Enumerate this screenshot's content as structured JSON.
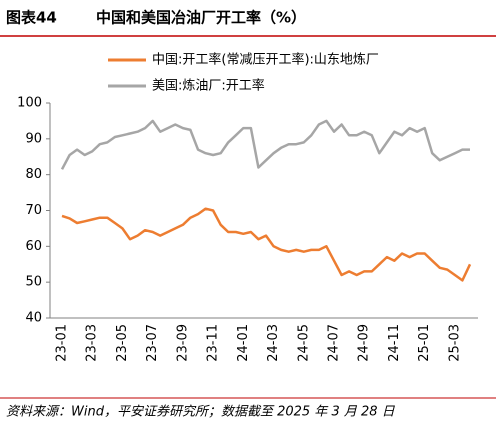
{
  "chart_data": {
    "type": "line",
    "figure_label": "图表44",
    "title": "中国和美国冶油厂开工率（%）",
    "source": "资料来源：Wind，平安证券研究所；数据截至 2025 年 3 月 28 日",
    "categories": [
      "23-01",
      null,
      null,
      null,
      "23-03",
      null,
      null,
      null,
      "23-05",
      null,
      null,
      null,
      "23-07",
      null,
      null,
      null,
      "23-09",
      null,
      null,
      null,
      "23-11",
      null,
      null,
      null,
      "24-01",
      null,
      null,
      null,
      "24-03",
      null,
      null,
      null,
      "24-05",
      null,
      null,
      null,
      "24-07",
      null,
      null,
      null,
      "24-09",
      null,
      null,
      null,
      "24-11",
      null,
      null,
      null,
      "25-01",
      null,
      null,
      null,
      "25-03",
      null,
      null
    ],
    "series": [
      {
        "name": "中国:开工率(常减压开工率):山东地炼厂",
        "color": "#ed7d31",
        "values": [
          68.5,
          67.8,
          66.5,
          67,
          67.5,
          68,
          68,
          66.5,
          65,
          62,
          63,
          64.5,
          64,
          63,
          64,
          65,
          66,
          68,
          69,
          70.5,
          70,
          66,
          64,
          64,
          63.5,
          64,
          62,
          63,
          60,
          59,
          58.5,
          59,
          58.5,
          59,
          59,
          60,
          56,
          52,
          53,
          52,
          53,
          53,
          55,
          57,
          56,
          58,
          57,
          58,
          58,
          56,
          54,
          53.5,
          52,
          50.5,
          55
        ]
      },
      {
        "name": "美国:炼油厂:开工率",
        "color": "#a6a6a6",
        "values": [
          81.5,
          85.5,
          87,
          85.5,
          86.5,
          88.5,
          89,
          90.5,
          91,
          91.5,
          92,
          93,
          95,
          92,
          93,
          94,
          93,
          92.5,
          87,
          86,
          85.5,
          86,
          89,
          91,
          93,
          93,
          82,
          84,
          86,
          87.5,
          88.5,
          88.5,
          89,
          91,
          94,
          95,
          92,
          94,
          91,
          91,
          92,
          91,
          86,
          89,
          92,
          91,
          93,
          92,
          93,
          86,
          84,
          85,
          86,
          87,
          87
        ]
      }
    ],
    "ylim": [
      40,
      100
    ],
    "yticks": [
      40,
      50,
      60,
      70,
      80,
      90,
      100
    ]
  }
}
